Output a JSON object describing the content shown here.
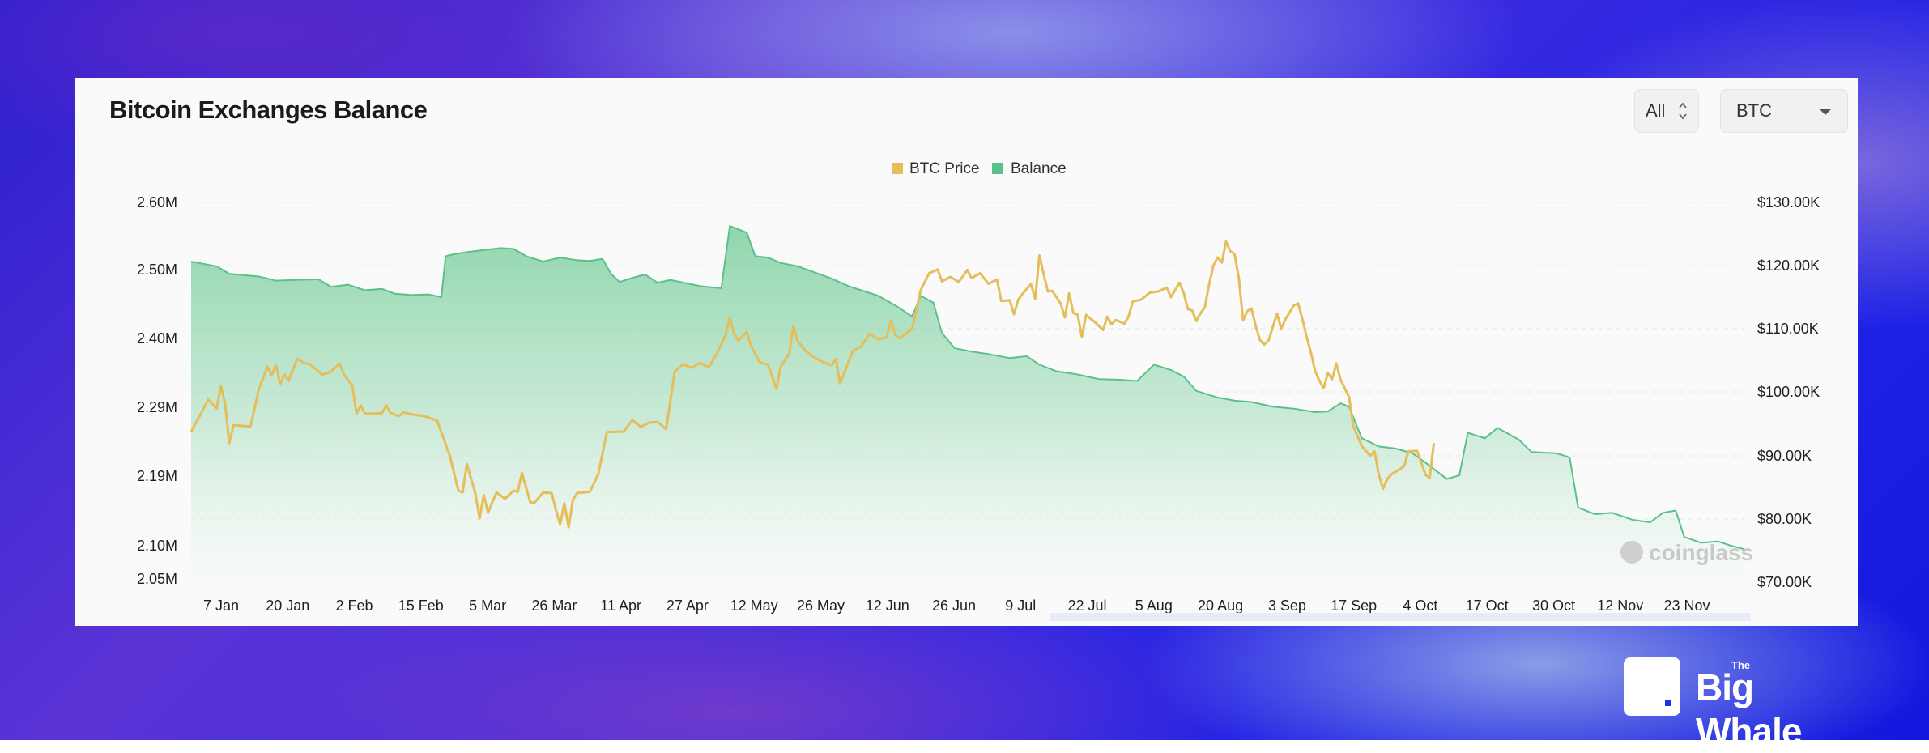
{
  "header": {
    "title": "Bitcoin Exchanges Balance",
    "range_label": "All",
    "coin_label": "BTC"
  },
  "legend": [
    {
      "label": "BTC Price",
      "color": "#e6bd5b"
    },
    {
      "label": "Balance",
      "color": "#5cc08a"
    }
  ],
  "watermark": "coinglass",
  "brand": {
    "name": "Big Whale",
    "prefix": "The"
  },
  "chart_data": {
    "type": "line",
    "title": "Bitcoin Exchanges Balance",
    "x_tick_labels": [
      "7 Jan",
      "20 Jan",
      "2 Feb",
      "15 Feb",
      "5 Mar",
      "26 Mar",
      "11 Apr",
      "27 Apr",
      "12 May",
      "26 May",
      "12 Jun",
      "26 Jun",
      "9 Jul",
      "22 Jul",
      "5 Aug",
      "20 Aug",
      "3 Sep",
      "17 Sep",
      "4 Oct",
      "17 Oct",
      "30 Oct",
      "12 Nov",
      "23 Nov"
    ],
    "y_left_tick_labels": [
      "2.60M",
      "2.50M",
      "2.40M",
      "2.29M",
      "2.19M",
      "2.10M",
      "2.05M"
    ],
    "y_right_tick_labels": [
      "$130.00K",
      "$120.00K",
      "$110.00K",
      "$100.00K",
      "$90.00K",
      "$80.00K",
      "$70.00K"
    ],
    "y_left_range": [
      2050000,
      2600000
    ],
    "y_right_range": [
      70000,
      130000
    ],
    "grid": true,
    "legend_position": "top-center",
    "series": [
      {
        "name": "Balance",
        "axis": "left",
        "style": "area",
        "color": "#5cc08a",
        "points": [
          [
            0,
            2.512
          ],
          [
            6,
            2.505
          ],
          [
            9,
            2.494
          ],
          [
            16,
            2.49
          ],
          [
            20,
            2.484
          ],
          [
            25,
            2.485
          ],
          [
            30,
            2.486
          ],
          [
            33,
            2.475
          ],
          [
            37,
            2.478
          ],
          [
            41,
            2.47
          ],
          [
            45,
            2.472
          ],
          [
            48,
            2.465
          ],
          [
            52,
            2.463
          ],
          [
            56,
            2.464
          ],
          [
            59,
            2.46
          ],
          [
            60,
            2.52
          ],
          [
            62,
            2.523
          ],
          [
            65,
            2.526
          ],
          [
            70,
            2.53
          ],
          [
            73,
            2.532
          ],
          [
            76,
            2.531
          ],
          [
            79,
            2.52
          ],
          [
            83,
            2.512
          ],
          [
            87,
            2.518
          ],
          [
            91,
            2.514
          ],
          [
            94,
            2.513
          ],
          [
            97,
            2.516
          ],
          [
            99,
            2.494
          ],
          [
            101,
            2.482
          ],
          [
            104,
            2.488
          ],
          [
            107,
            2.493
          ],
          [
            110,
            2.481
          ],
          [
            113,
            2.485
          ],
          [
            117,
            2.48
          ],
          [
            120,
            2.476
          ],
          [
            125,
            2.473
          ],
          [
            127,
            2.565
          ],
          [
            131,
            2.555
          ],
          [
            133,
            2.52
          ],
          [
            136,
            2.518
          ],
          [
            139,
            2.51
          ],
          [
            143,
            2.505
          ],
          [
            147,
            2.496
          ],
          [
            151,
            2.487
          ],
          [
            155,
            2.476
          ],
          [
            158,
            2.47
          ],
          [
            162,
            2.462
          ],
          [
            166,
            2.448
          ],
          [
            170,
            2.432
          ],
          [
            172,
            2.462
          ],
          [
            175,
            2.452
          ],
          [
            177,
            2.408
          ],
          [
            180,
            2.385
          ],
          [
            184,
            2.38
          ],
          [
            188,
            2.376
          ],
          [
            193,
            2.37
          ],
          [
            197,
            2.373
          ],
          [
            200,
            2.36
          ],
          [
            204,
            2.35
          ],
          [
            209,
            2.345
          ],
          [
            214,
            2.338
          ],
          [
            219,
            2.337
          ],
          [
            223,
            2.335
          ],
          [
            227,
            2.36
          ],
          [
            231,
            2.352
          ],
          [
            234,
            2.342
          ],
          [
            237,
            2.32
          ],
          [
            242,
            2.31
          ],
          [
            246,
            2.305
          ],
          [
            250,
            2.303
          ],
          [
            255,
            2.296
          ],
          [
            260,
            2.293
          ],
          [
            265,
            2.288
          ],
          [
            268,
            2.289
          ],
          [
            271,
            2.301
          ],
          [
            273,
            2.296
          ],
          [
            276,
            2.25
          ],
          [
            280,
            2.238
          ],
          [
            284,
            2.235
          ],
          [
            288,
            2.228
          ],
          [
            292,
            2.21
          ],
          [
            296,
            2.191
          ],
          [
            299,
            2.196
          ],
          [
            301,
            2.258
          ],
          [
            305,
            2.25
          ],
          [
            308,
            2.265
          ],
          [
            313,
            2.248
          ],
          [
            316,
            2.23
          ],
          [
            322,
            2.228
          ],
          [
            325,
            2.222
          ],
          [
            327,
            2.152
          ],
          [
            331,
            2.143
          ],
          [
            335,
            2.145
          ],
          [
            340,
            2.135
          ],
          [
            344,
            2.132
          ],
          [
            347,
            2.145
          ],
          [
            350,
            2.148
          ],
          [
            352,
            2.112
          ],
          [
            356,
            2.104
          ],
          [
            360,
            2.106
          ],
          [
            363,
            2.1
          ],
          [
            366,
            2.095
          ]
        ]
      },
      {
        "name": "BTC Price",
        "axis": "right",
        "style": "line",
        "color": "#e6bd5b",
        "points": [
          [
            0,
            93800
          ],
          [
            2,
            96200
          ],
          [
            4,
            98800
          ],
          [
            6,
            97400
          ],
          [
            7,
            101000
          ],
          [
            8,
            98200
          ],
          [
            9,
            92000
          ],
          [
            10,
            94800
          ],
          [
            14,
            94600
          ],
          [
            16,
            100500
          ],
          [
            18,
            104000
          ],
          [
            19,
            102600
          ],
          [
            20,
            104300
          ],
          [
            21,
            101200
          ],
          [
            22,
            102700
          ],
          [
            23,
            101800
          ],
          [
            25,
            105200
          ],
          [
            27,
            104500
          ],
          [
            28,
            104400
          ],
          [
            29,
            103800
          ],
          [
            31,
            102700
          ],
          [
            33,
            103200
          ],
          [
            35,
            104500
          ],
          [
            36,
            102800
          ],
          [
            38,
            101000
          ],
          [
            39,
            96600
          ],
          [
            40,
            97900
          ],
          [
            41,
            96600
          ],
          [
            43,
            96600
          ],
          [
            45,
            96700
          ],
          [
            46,
            97900
          ],
          [
            47,
            96700
          ],
          [
            49,
            96200
          ],
          [
            50,
            96800
          ],
          [
            52,
            96500
          ],
          [
            55,
            96200
          ],
          [
            58,
            95500
          ],
          [
            61,
            90000
          ],
          [
            63,
            84500
          ],
          [
            64,
            84200
          ],
          [
            65,
            88700
          ],
          [
            67,
            84100
          ],
          [
            68,
            80100
          ],
          [
            69,
            83800
          ],
          [
            70,
            81000
          ],
          [
            72,
            84200
          ],
          [
            74,
            83200
          ],
          [
            76,
            84500
          ],
          [
            77,
            84300
          ],
          [
            78,
            87300
          ],
          [
            80,
            82600
          ],
          [
            81,
            82600
          ],
          [
            83,
            84200
          ],
          [
            85,
            84100
          ],
          [
            86,
            81500
          ],
          [
            87,
            79100
          ],
          [
            88,
            82500
          ],
          [
            89,
            78700
          ],
          [
            90,
            83000
          ],
          [
            91,
            84100
          ],
          [
            94,
            84300
          ],
          [
            96,
            87100
          ],
          [
            98,
            93700
          ],
          [
            102,
            93800
          ],
          [
            104,
            95600
          ],
          [
            106,
            94500
          ],
          [
            108,
            95200
          ],
          [
            110,
            95300
          ],
          [
            112,
            94200
          ],
          [
            114,
            103200
          ],
          [
            116,
            104400
          ],
          [
            118,
            103800
          ],
          [
            120,
            104600
          ],
          [
            122,
            103900
          ],
          [
            124,
            106100
          ],
          [
            126,
            109000
          ],
          [
            127,
            111800
          ],
          [
            128,
            109200
          ],
          [
            129,
            108100
          ],
          [
            131,
            109500
          ],
          [
            132,
            107300
          ],
          [
            134,
            104700
          ],
          [
            136,
            104300
          ],
          [
            138,
            100500
          ],
          [
            139,
            104000
          ],
          [
            141,
            106000
          ],
          [
            142,
            110500
          ],
          [
            143,
            108000
          ],
          [
            145,
            106400
          ],
          [
            147,
            105400
          ],
          [
            149,
            104700
          ],
          [
            151,
            104200
          ],
          [
            152,
            105200
          ],
          [
            153,
            101300
          ],
          [
            156,
            106500
          ],
          [
            158,
            107200
          ],
          [
            160,
            109200
          ],
          [
            162,
            108300
          ],
          [
            164,
            108700
          ],
          [
            165,
            111300
          ],
          [
            166,
            109000
          ],
          [
            167,
            108500
          ],
          [
            170,
            110000
          ],
          [
            172,
            116100
          ],
          [
            174,
            118800
          ],
          [
            176,
            119400
          ],
          [
            177,
            117500
          ],
          [
            179,
            118200
          ],
          [
            181,
            117400
          ],
          [
            183,
            119300
          ],
          [
            184,
            118000
          ],
          [
            186,
            118800
          ],
          [
            188,
            117100
          ],
          [
            190,
            117800
          ],
          [
            191,
            114400
          ],
          [
            193,
            114500
          ],
          [
            194,
            112300
          ],
          [
            195,
            114600
          ],
          [
            196,
            115500
          ],
          [
            198,
            117100
          ],
          [
            199,
            114700
          ],
          [
            200,
            121600
          ],
          [
            201,
            118600
          ],
          [
            202,
            115900
          ],
          [
            203,
            116000
          ],
          [
            205,
            114000
          ],
          [
            206,
            111800
          ],
          [
            207,
            115600
          ],
          [
            208,
            112500
          ],
          [
            209,
            112200
          ],
          [
            210,
            108700
          ],
          [
            211,
            112200
          ],
          [
            212,
            111600
          ],
          [
            213,
            111100
          ],
          [
            215,
            109800
          ],
          [
            216,
            111900
          ],
          [
            217,
            110700
          ],
          [
            218,
            111400
          ],
          [
            220,
            110800
          ],
          [
            221,
            111900
          ],
          [
            222,
            114300
          ],
          [
            224,
            114600
          ],
          [
            226,
            115700
          ],
          [
            228,
            115900
          ],
          [
            230,
            116500
          ],
          [
            231,
            115000
          ],
          [
            233,
            117300
          ],
          [
            234,
            115700
          ],
          [
            235,
            113100
          ],
          [
            236,
            112900
          ],
          [
            237,
            111200
          ],
          [
            238,
            112500
          ],
          [
            239,
            113400
          ],
          [
            240,
            117000
          ],
          [
            241,
            120000
          ],
          [
            242,
            121300
          ],
          [
            243,
            120500
          ],
          [
            244,
            123800
          ],
          [
            245,
            122300
          ],
          [
            246,
            121800
          ],
          [
            247,
            118100
          ],
          [
            248,
            111300
          ],
          [
            249,
            112800
          ],
          [
            250,
            113200
          ],
          [
            251,
            110400
          ],
          [
            252,
            108200
          ],
          [
            253,
            107500
          ],
          [
            254,
            108100
          ],
          [
            256,
            112400
          ],
          [
            257,
            110000
          ],
          [
            258,
            111500
          ],
          [
            260,
            113700
          ],
          [
            261,
            114000
          ],
          [
            262,
            111500
          ],
          [
            263,
            108700
          ],
          [
            264,
            106200
          ],
          [
            265,
            103300
          ],
          [
            266,
            101800
          ],
          [
            267,
            100600
          ],
          [
            268,
            103000
          ],
          [
            269,
            102000
          ],
          [
            270,
            104500
          ],
          [
            271,
            101900
          ],
          [
            273,
            99200
          ],
          [
            274,
            94700
          ],
          [
            276,
            91500
          ],
          [
            278,
            90000
          ],
          [
            279,
            90700
          ],
          [
            280,
            87000
          ],
          [
            281,
            84800
          ],
          [
            282,
            86300
          ],
          [
            283,
            87100
          ],
          [
            285,
            87900
          ],
          [
            286,
            88400
          ],
          [
            287,
            90700
          ],
          [
            289,
            90800
          ],
          [
            290,
            89000
          ],
          [
            291,
            87000
          ],
          [
            292,
            86500
          ],
          [
            293,
            92000
          ]
        ]
      }
    ]
  }
}
